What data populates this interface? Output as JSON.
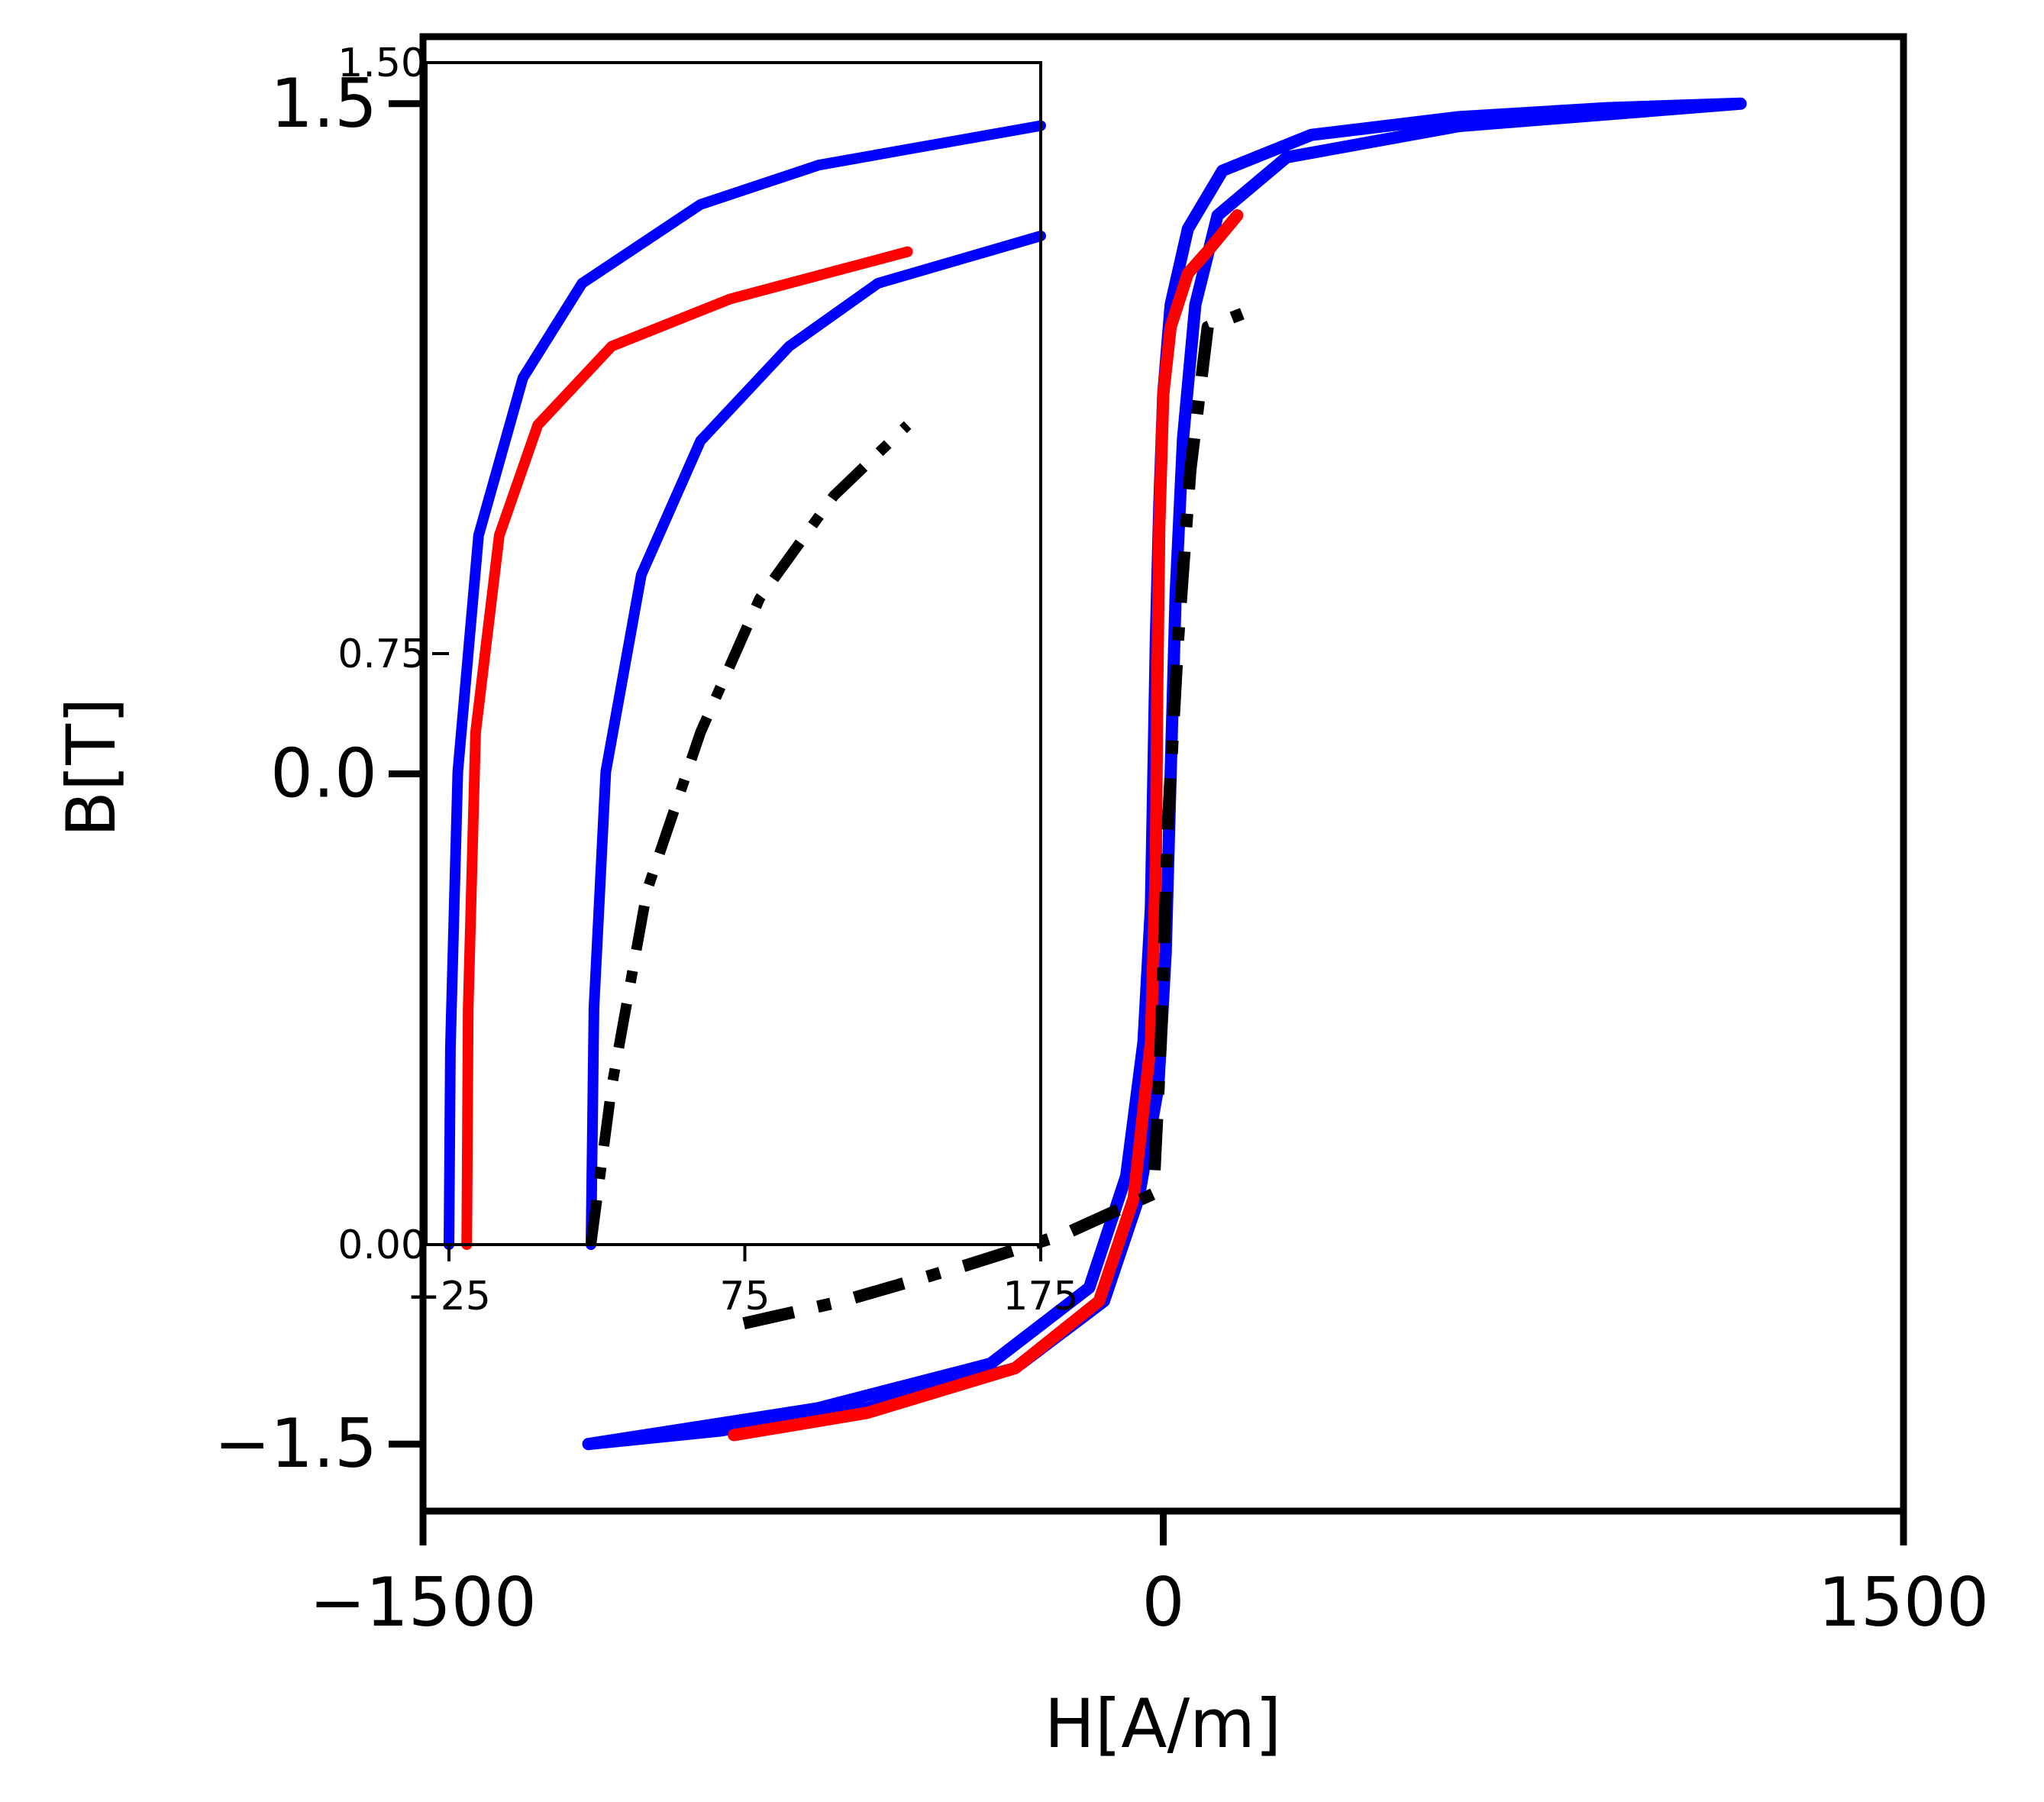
{
  "chart_data": [
    {
      "type": "line",
      "title": "",
      "xlabel": "H[A/m]",
      "ylabel": "B[T]",
      "xlim": [
        -1500,
        1500
      ],
      "ylim": [
        -1.65,
        1.65
      ],
      "xticks": [
        -1500,
        0,
        1500
      ],
      "xtick_labels": [
        "−1500",
        "0",
        "1500"
      ],
      "yticks": [
        -1.5,
        0.0,
        1.5
      ],
      "ytick_labels": [
        "−1.5",
        "0.0",
        "1.5"
      ],
      "grid": false,
      "legend": "none",
      "series": [
        {
          "color": "#0000ff",
          "style": "solid",
          "points": [
            [
              -1165,
              -1.5
            ],
            [
              -900,
              -1.47
            ],
            [
              -600,
              -1.42
            ],
            [
              -300,
              -1.33
            ],
            [
              -120,
              -1.18
            ],
            [
              -50,
              -0.95
            ],
            [
              -10,
              -0.7
            ],
            [
              5,
              -0.4
            ],
            [
              15,
              0
            ],
            [
              25,
              0.4
            ],
            [
              40,
              0.75
            ],
            [
              65,
              1.05
            ],
            [
              110,
              1.25
            ],
            [
              250,
              1.38
            ],
            [
              600,
              1.45
            ],
            [
              1170,
              1.5
            ],
            [
              900,
              1.49
            ],
            [
              600,
              1.47
            ],
            [
              300,
              1.43
            ],
            [
              120,
              1.35
            ],
            [
              50,
              1.22
            ],
            [
              15,
              1.05
            ],
            [
              0,
              0.85
            ],
            [
              -8,
              0.6
            ],
            [
              -15,
              0.3
            ],
            [
              -20,
              0
            ],
            [
              -25,
              -0.3
            ],
            [
              -40,
              -0.6
            ],
            [
              -75,
              -0.9
            ],
            [
              -150,
              -1.15
            ],
            [
              -350,
              -1.32
            ],
            [
              -700,
              -1.42
            ],
            [
              -1165,
              -1.5
            ]
          ]
        },
        {
          "color": "#ff0000",
          "style": "solid",
          "points": [
            [
              -870,
              -1.48
            ],
            [
              -600,
              -1.43
            ],
            [
              -300,
              -1.33
            ],
            [
              -130,
              -1.18
            ],
            [
              -60,
              -0.95
            ],
            [
              -25,
              -0.6
            ],
            [
              -15,
              -0.2
            ],
            [
              -12,
              0.2
            ],
            [
              -8,
              0.55
            ],
            [
              0,
              0.85
            ],
            [
              15,
              1.0
            ],
            [
              50,
              1.12
            ],
            [
              90,
              1.17
            ],
            [
              150,
              1.25
            ]
          ]
        },
        {
          "color": "#000000",
          "style": "dashdot",
          "points": [
            [
              -850,
              -1.23
            ],
            [
              -650,
              -1.18
            ],
            [
              -400,
              -1.1
            ],
            [
              -200,
              -1.03
            ],
            [
              -20,
              -0.94
            ],
            [
              -5,
              -0.6
            ],
            [
              10,
              -0.1
            ],
            [
              30,
              0.3
            ],
            [
              55,
              0.68
            ],
            [
              90,
              1.0
            ],
            [
              160,
              1.03
            ]
          ]
        }
      ]
    },
    {
      "type": "line",
      "title": "",
      "xlabel": "",
      "ylabel": "",
      "xlim": [
        -32,
        175
      ],
      "ylim": [
        0,
        1.5
      ],
      "xticks": [
        -25,
        75,
        175
      ],
      "xtick_labels": [
        "−25",
        "75",
        "175"
      ],
      "yticks": [
        0.0,
        0.75,
        1.5
      ],
      "ytick_labels": [
        "0.00",
        "0.75",
        "1.50"
      ],
      "grid": false,
      "legend": "none",
      "series": [
        {
          "color": "#0000ff",
          "style": "solid",
          "points": [
            [
              -25,
              0
            ],
            [
              -24.5,
              0.25
            ],
            [
              -22,
              0.6
            ],
            [
              -15,
              0.9
            ],
            [
              0,
              1.1
            ],
            [
              20,
              1.22
            ],
            [
              60,
              1.32
            ],
            [
              100,
              1.37
            ],
            [
              175,
              1.42
            ]
          ]
        },
        {
          "color": "#0000ff",
          "style": "solid",
          "points": [
            [
              23,
              0
            ],
            [
              24,
              0.3
            ],
            [
              28,
              0.6
            ],
            [
              40,
              0.85
            ],
            [
              60,
              1.02
            ],
            [
              90,
              1.14
            ],
            [
              120,
              1.22
            ],
            [
              175,
              1.28
            ]
          ]
        },
        {
          "color": "#ff0000",
          "style": "solid",
          "points": [
            [
              -19,
              0
            ],
            [
              -18.5,
              0.3
            ],
            [
              -16,
              0.65
            ],
            [
              -8,
              0.9
            ],
            [
              5,
              1.04
            ],
            [
              30,
              1.14
            ],
            [
              70,
              1.2
            ],
            [
              100,
              1.23
            ],
            [
              130,
              1.26
            ]
          ]
        },
        {
          "color": "#000000",
          "style": "dashdot",
          "points": [
            [
              23,
              0
            ],
            [
              30,
              0.2
            ],
            [
              42,
              0.45
            ],
            [
              60,
              0.65
            ],
            [
              80,
              0.82
            ],
            [
              105,
              0.95
            ],
            [
              130,
              1.04
            ]
          ]
        }
      ]
    }
  ]
}
